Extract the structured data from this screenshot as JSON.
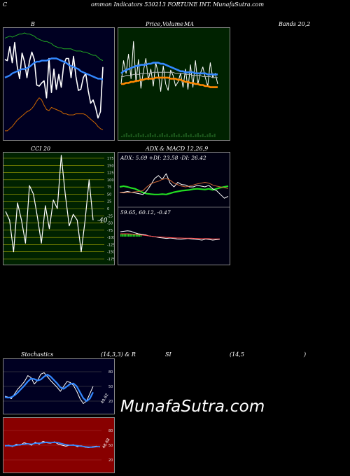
{
  "header": {
    "title_left": "C",
    "title_main": "ommon  Indicators 530213 FORTUNE INT.  MunafaSutra.com"
  },
  "labels": {
    "bb": "B",
    "price": "Price,",
    "volume": "Volume",
    "ma": "MA",
    "bands": "Bands 20,2",
    "cci": "CCI 20",
    "adx": "ADX",
    "macd": "& MACD 12,26,9",
    "stoch": "Stochastics",
    "stoch_params": "(14,3,3) & R",
    "rsi": "SI",
    "rsi_params": "(14,5",
    "rsi_close": ")",
    "watermark": "MunafaSutra.com"
  },
  "colors": {
    "bb_bg": "#000022",
    "ma_bg": "#002200",
    "cci_bg": "#002200",
    "adx_bg": "#000011",
    "stoch_bg": "#000022",
    "rsi_bg": "#880000"
  },
  "chart_data": [
    {
      "id": "bollinger",
      "type": "line",
      "series": [
        {
          "name": "upper",
          "color": "#22aa22",
          "values": [
            0.93,
            0.94,
            0.95,
            0.94,
            0.95,
            0.96,
            0.97,
            0.97,
            0.98,
            0.97,
            0.97,
            0.96,
            0.95,
            0.93,
            0.92,
            0.91,
            0.9,
            0.9,
            0.89,
            0.88,
            0.86,
            0.85,
            0.84,
            0.84,
            0.83,
            0.83,
            0.83,
            0.83,
            0.82,
            0.81,
            0.81,
            0.81,
            0.8,
            0.8,
            0.79,
            0.78,
            0.77,
            0.77,
            0.75,
            0.73,
            0.72
          ]
        },
        {
          "name": "price",
          "color": "#ffffff",
          "values": [
            0.73,
            0.72,
            0.85,
            0.7,
            0.89,
            0.67,
            0.55,
            0.79,
            0.71,
            0.56,
            0.71,
            0.8,
            0.73,
            0.49,
            0.48,
            0.51,
            0.53,
            0.37,
            0.74,
            0.42,
            0.64,
            0.45,
            0.59,
            0.47,
            0.68,
            0.74,
            0.74,
            0.56,
            0.76,
            0.57,
            0.44,
            0.45,
            0.56,
            0.6,
            0.44,
            0.32,
            0.35,
            0.28,
            0.18,
            0.24,
            0.66
          ]
        },
        {
          "name": "middle",
          "color": "#3388ff",
          "values": [
            0.56,
            0.57,
            0.58,
            0.6,
            0.61,
            0.62,
            0.63,
            0.64,
            0.64,
            0.65,
            0.66,
            0.68,
            0.7,
            0.71,
            0.71,
            0.72,
            0.72,
            0.72,
            0.73,
            0.74,
            0.74,
            0.74,
            0.73,
            0.72,
            0.71,
            0.7,
            0.68,
            0.67,
            0.66,
            0.65,
            0.64,
            0.62,
            0.61,
            0.6,
            0.59,
            0.58,
            0.57,
            0.56,
            0.55,
            0.55,
            0.54
          ]
        },
        {
          "name": "lower",
          "color": "#cc6600",
          "values": [
            0.06,
            0.06,
            0.08,
            0.1,
            0.13,
            0.16,
            0.18,
            0.2,
            0.22,
            0.24,
            0.25,
            0.27,
            0.3,
            0.34,
            0.37,
            0.35,
            0.3,
            0.26,
            0.25,
            0.28,
            0.27,
            0.26,
            0.25,
            0.24,
            0.22,
            0.22,
            0.21,
            0.21,
            0.21,
            0.22,
            0.22,
            0.22,
            0.22,
            0.21,
            0.19,
            0.17,
            0.15,
            0.13,
            0.1,
            0.08,
            0.07
          ]
        }
      ]
    },
    {
      "id": "price_volume_ma",
      "type": "line",
      "series": [
        {
          "name": "price",
          "color": "#ffffff",
          "values": [
            0.5,
            0.72,
            0.6,
            0.78,
            0.55,
            0.9,
            0.52,
            0.73,
            0.46,
            0.62,
            0.74,
            0.54,
            0.64,
            0.48,
            0.7,
            0.6,
            0.43,
            0.67,
            0.5,
            0.44,
            0.63,
            0.58,
            0.48,
            0.52,
            0.6,
            0.47,
            0.64,
            0.45,
            0.68,
            0.47,
            0.72,
            0.5,
            0.6,
            0.66,
            0.56,
            0.48,
            0.7,
            0.56,
            0.6,
            0.5
          ]
        },
        {
          "name": "ma_blue",
          "color": "#3388ff",
          "values": [
            0.6,
            0.62,
            0.63,
            0.64,
            0.65,
            0.66,
            0.67,
            0.67,
            0.68,
            0.68,
            0.68,
            0.69,
            0.69,
            0.7,
            0.7,
            0.7,
            0.69,
            0.69,
            0.68,
            0.67,
            0.66,
            0.65,
            0.64,
            0.63,
            0.62,
            0.62,
            0.61,
            0.61,
            0.61,
            0.61,
            0.6,
            0.6,
            0.6,
            0.6,
            0.6,
            0.59,
            0.59,
            0.59,
            0.59,
            0.59
          ]
        },
        {
          "name": "ma_orange",
          "color": "#ff8800",
          "values": [
            0.5,
            0.5,
            0.51,
            0.51,
            0.52,
            0.52,
            0.53,
            0.53,
            0.54,
            0.54,
            0.55,
            0.55,
            0.55,
            0.55,
            0.56,
            0.56,
            0.56,
            0.56,
            0.56,
            0.56,
            0.55,
            0.55,
            0.55,
            0.54,
            0.54,
            0.53,
            0.52,
            0.52,
            0.51,
            0.51,
            0.5,
            0.5,
            0.49,
            0.49,
            0.48,
            0.48,
            0.47,
            0.47,
            0.47,
            0.47
          ]
        },
        {
          "name": "ma_grey",
          "color": "#bbbbbb",
          "values": [
            0.57,
            0.57,
            0.58,
            0.58,
            0.58,
            0.59,
            0.59,
            0.59,
            0.6,
            0.6,
            0.6,
            0.6,
            0.6,
            0.61,
            0.61,
            0.61,
            0.61,
            0.61,
            0.61,
            0.61,
            0.61,
            0.61,
            0.6,
            0.6,
            0.6,
            0.6,
            0.59,
            0.59,
            0.59,
            0.58,
            0.58,
            0.58,
            0.58,
            0.57,
            0.57,
            0.57,
            0.57,
            0.56,
            0.56,
            0.56
          ]
        }
      ]
    },
    {
      "id": "cci",
      "type": "line",
      "ylim": [
        -175,
        175
      ],
      "yticks": [
        175,
        150,
        125,
        100,
        75,
        50,
        25,
        0,
        -25,
        -50,
        -75,
        -100,
        -125,
        -150,
        -175
      ],
      "value_label": "-40",
      "series": [
        {
          "name": "cci",
          "color": "#ffffff",
          "values": [
            -10,
            -40,
            -150,
            20,
            -40,
            -120,
            80,
            50,
            -30,
            -120,
            10,
            -70,
            30,
            0,
            185,
            50,
            -60,
            -20,
            -40,
            -150,
            -40,
            100,
            -40
          ]
        }
      ]
    },
    {
      "id": "adx_macd",
      "type": "line",
      "adx_label": "ADX: 5.69  +DI: 23.58  -DI: 26.42",
      "macd_label": "59.65,  60.12,  -0.47",
      "series": [
        {
          "name": "adx",
          "color": "#22dd22",
          "values": [
            0.5,
            0.52,
            0.5,
            0.47,
            0.45,
            0.4,
            0.35,
            0.32,
            0.31,
            0.3,
            0.3,
            0.31,
            0.3,
            0.33,
            0.36,
            0.38,
            0.4,
            0.41,
            0.42,
            0.44,
            0.45,
            0.44,
            0.43,
            0.45,
            0.42,
            0.45,
            0.48,
            0.5,
            0.52
          ]
        },
        {
          "name": "plus_di",
          "color": "#ffffff",
          "values": [
            0.35,
            0.36,
            0.38,
            0.36,
            0.34,
            0.32,
            0.3,
            0.4,
            0.55,
            0.72,
            0.8,
            0.7,
            0.85,
            0.6,
            0.5,
            0.62,
            0.56,
            0.55,
            0.5,
            0.5,
            0.54,
            0.52,
            0.5,
            0.54,
            0.45,
            0.4,
            0.3,
            0.2,
            0.25
          ]
        },
        {
          "name": "minus_di",
          "color": "#cc6633",
          "values": [
            0.35,
            0.34,
            0.35,
            0.36,
            0.37,
            0.38,
            0.4,
            0.5,
            0.58,
            0.62,
            0.65,
            0.7,
            0.72,
            0.68,
            0.6,
            0.56,
            0.52,
            0.5,
            0.52,
            0.55,
            0.58,
            0.6,
            0.62,
            0.6,
            0.55,
            0.52,
            0.5,
            0.48,
            0.46
          ]
        },
        {
          "name": "macd",
          "color": "#ffffff",
          "values": [
            0.7,
            0.72,
            0.74,
            0.72,
            0.65,
            0.6,
            0.58,
            0.55,
            0.5,
            0.48,
            0.45,
            0.42,
            0.4,
            0.38,
            0.4,
            0.38,
            0.35,
            0.34,
            0.36,
            0.38,
            0.36,
            0.34,
            0.32,
            0.3,
            0.35,
            0.33,
            0.3,
            0.32,
            0.34
          ]
        },
        {
          "name": "signal",
          "color": "#ff4444",
          "values": [
            0.6,
            0.6,
            0.6,
            0.59,
            0.58,
            0.56,
            0.54,
            0.52,
            0.5,
            0.48,
            0.46,
            0.45,
            0.44,
            0.43,
            0.42,
            0.41,
            0.4,
            0.4,
            0.39,
            0.39,
            0.39,
            0.38,
            0.38,
            0.37,
            0.37,
            0.37,
            0.36,
            0.36,
            0.36
          ]
        }
      ]
    },
    {
      "id": "stochastics",
      "type": "line",
      "ylim": [
        0,
        100
      ],
      "yticks": [
        80,
        50,
        20
      ],
      "value_label": "49.62",
      "series": [
        {
          "name": "k",
          "color": "#ffffff",
          "values": [
            30,
            28,
            25,
            35,
            45,
            52,
            60,
            72,
            68,
            55,
            62,
            75,
            78,
            70,
            62,
            55,
            48,
            40,
            50,
            60,
            58,
            52,
            40,
            25,
            15,
            20,
            35,
            50
          ]
        },
        {
          "name": "d",
          "color": "#3388ff",
          "values": [
            28,
            27,
            28,
            32,
            38,
            45,
            52,
            60,
            66,
            65,
            62,
            64,
            70,
            74,
            70,
            63,
            56,
            48,
            45,
            50,
            55,
            56,
            50,
            38,
            26,
            20,
            25,
            38
          ]
        }
      ]
    },
    {
      "id": "rsi",
      "type": "line",
      "ylim": [
        0,
        100
      ],
      "yticks": [
        80,
        50,
        20
      ],
      "value_label": "48.68",
      "series": [
        {
          "name": "rsi",
          "color": "#ffffff",
          "values": [
            48,
            50,
            47,
            52,
            50,
            55,
            53,
            50,
            56,
            52,
            58,
            55,
            54,
            57,
            52,
            50,
            48,
            50,
            51,
            47,
            49,
            46,
            45,
            47,
            48,
            46
          ]
        },
        {
          "name": "rsi_ma",
          "color": "#3388ff",
          "values": [
            49,
            49,
            48,
            50,
            51,
            52,
            53,
            52,
            54,
            54,
            55,
            56,
            55,
            56,
            55,
            53,
            51,
            50,
            50,
            49,
            48,
            47,
            46,
            46,
            47,
            47
          ]
        }
      ]
    }
  ]
}
